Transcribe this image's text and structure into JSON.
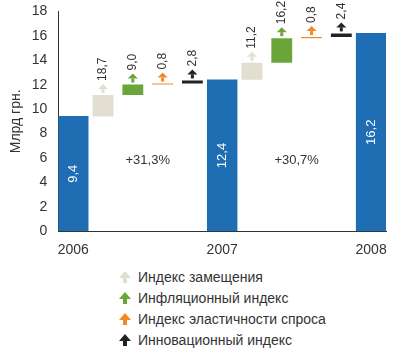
{
  "chart_data": {
    "type": "waterfall",
    "y_label": "Млрд грн.",
    "categories": [
      "2006",
      null,
      null,
      null,
      null,
      "2007",
      null,
      null,
      null,
      null,
      "2008"
    ],
    "series": [
      {
        "type": "total",
        "color": "#1f6db3",
        "values": [
          9.4,
          null,
          null,
          null,
          null,
          12.4,
          null,
          null,
          null,
          null,
          16.2
        ],
        "value_labels": [
          "9,4",
          null,
          null,
          null,
          null,
          "12,4",
          null,
          null,
          null,
          null,
          "16,2"
        ]
      },
      {
        "type": "step",
        "name": "Индекс замещения",
        "color": "#e2dfd2",
        "values": [
          null,
          1.76,
          null,
          null,
          null,
          null,
          1.39,
          null,
          null,
          null,
          null
        ],
        "share_labels": [
          null,
          "18,7",
          null,
          null,
          null,
          null,
          "11,2",
          null,
          null,
          null,
          null
        ]
      },
      {
        "type": "step",
        "name": "Инфляционный индекс",
        "color": "#6ba539",
        "values": [
          null,
          null,
          0.85,
          null,
          null,
          null,
          null,
          2.01,
          null,
          null,
          null
        ],
        "share_labels": [
          null,
          null,
          "9,0",
          null,
          null,
          null,
          null,
          "16,2",
          null,
          null,
          null
        ]
      },
      {
        "type": "step",
        "name": "Индекс эластичности спроса",
        "color": "#f08a24",
        "values": [
          null,
          null,
          null,
          0.08,
          null,
          null,
          null,
          null,
          0.1,
          null,
          null
        ],
        "share_labels": [
          null,
          null,
          null,
          "0,8",
          null,
          null,
          null,
          null,
          "0,8",
          null,
          null
        ]
      },
      {
        "type": "step",
        "name": "Инновационный индекс",
        "color": "#222222",
        "values": [
          null,
          null,
          null,
          null,
          0.26,
          null,
          null,
          null,
          null,
          0.3,
          null
        ],
        "share_labels": [
          null,
          null,
          null,
          null,
          "2,8",
          null,
          null,
          null,
          null,
          "2,4",
          null
        ]
      }
    ],
    "growth_labels": [
      "+31,3%",
      "+30,7%"
    ],
    "ylim": [
      0,
      18
    ],
    "yticks": [
      0,
      2,
      4,
      6,
      8,
      10,
      12,
      14,
      16,
      18
    ],
    "grid": false,
    "data_labels": true,
    "legend": "bottom"
  }
}
